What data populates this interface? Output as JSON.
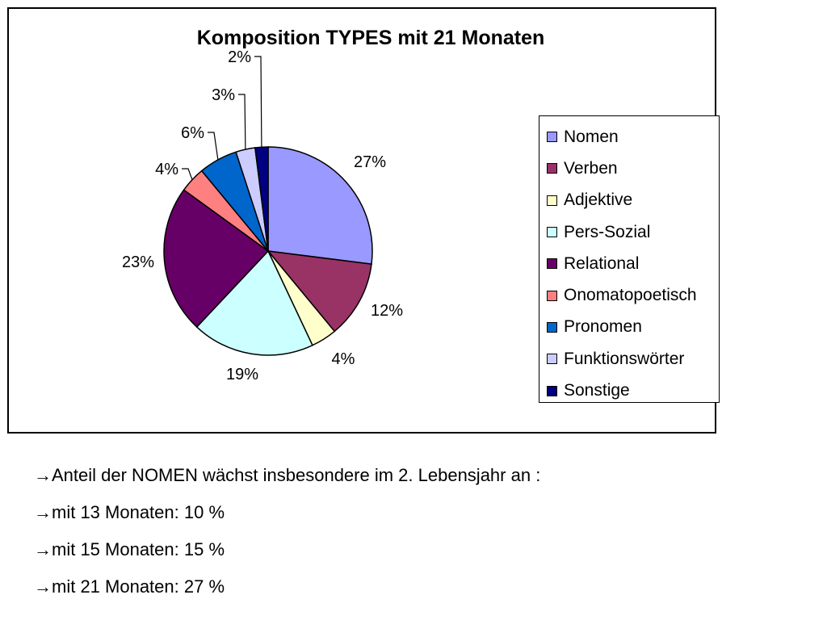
{
  "chart_data": {
    "type": "pie",
    "title": "Komposition TYPES mit 21 Monaten",
    "slices": [
      {
        "label": "Nomen",
        "value": 27,
        "display": "27%",
        "color": "#9999ff"
      },
      {
        "label": "Verben",
        "value": 12,
        "display": "12%",
        "color": "#993366"
      },
      {
        "label": "Adjektive",
        "value": 4,
        "display": "4%",
        "color": "#ffffcc"
      },
      {
        "label": "Pers-Sozial",
        "value": 19,
        "display": "19%",
        "color": "#ccffff"
      },
      {
        "label": "Relational",
        "value": 23,
        "display": "23%",
        "color": "#660066"
      },
      {
        "label": "Onomatopoetisch",
        "value": 4,
        "display": "4%",
        "color": "#ff8080"
      },
      {
        "label": "Pronomen",
        "value": 6,
        "display": "6%",
        "color": "#0066cc"
      },
      {
        "label": "Funktionswörter",
        "value": 3,
        "display": "3%",
        "color": "#ccccff"
      },
      {
        "label": "Sonstige",
        "value": 2,
        "display": "2%",
        "color": "#000080"
      }
    ],
    "legend_position": "right"
  },
  "notes": {
    "arrow": "→",
    "lines": [
      "Anteil der NOMEN wächst insbesondere im 2. Lebensjahr an :",
      "mit 13 Monaten: 10 %",
      "mit 15 Monaten: 15 %",
      "mit 21 Monaten: 27 %"
    ]
  }
}
